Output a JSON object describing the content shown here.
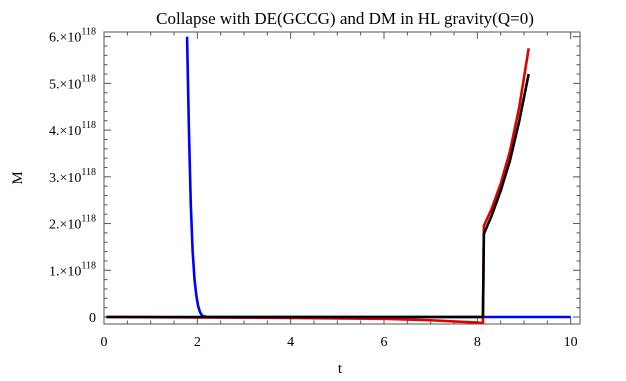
{
  "chart_data": {
    "type": "line",
    "title": "Collapse with DE(GCCG) and DM in HL gravity(Q=0)",
    "xlabel": "t",
    "ylabel": "M",
    "xlim": [
      0,
      10.2
    ],
    "ylim": [
      -1.5e+117,
      6.1e+118
    ],
    "grid": false,
    "legend": "none",
    "x_ticks": [
      {
        "value": 0,
        "label": "0"
      },
      {
        "value": 2,
        "label": "2"
      },
      {
        "value": 4,
        "label": "4"
      },
      {
        "value": 6,
        "label": "6"
      },
      {
        "value": 8,
        "label": "8"
      },
      {
        "value": 10,
        "label": "10"
      }
    ],
    "y_ticks": [
      {
        "value": 0,
        "base": "0",
        "exp": ""
      },
      {
        "value": 1e+118,
        "base": "1.×10",
        "exp": "118"
      },
      {
        "value": 2e+118,
        "base": "2.×10",
        "exp": "118"
      },
      {
        "value": 3e+118,
        "base": "3.×10",
        "exp": "118"
      },
      {
        "value": 4e+118,
        "base": "4.×10",
        "exp": "118"
      },
      {
        "value": 5e+118,
        "base": "5.×10",
        "exp": "118"
      },
      {
        "value": 6e+118,
        "base": "6.×10",
        "exp": "118"
      }
    ],
    "series": [
      {
        "color": "#0000ff",
        "points": [
          [
            1.78,
            6e+118
          ],
          [
            1.82,
            4e+118
          ],
          [
            1.86,
            2.4e+118
          ],
          [
            1.9,
            1.4e+118
          ],
          [
            1.94,
            8e+117
          ],
          [
            1.98,
            4.5e+117
          ],
          [
            2.02,
            2.2e+117
          ],
          [
            2.06,
            1e+117
          ],
          [
            2.1,
            3e+116
          ],
          [
            2.2,
            0.0
          ],
          [
            2.6,
            0.0
          ],
          [
            4.0,
            0.0
          ],
          [
            6.0,
            0.0
          ],
          [
            8.0,
            0.0
          ],
          [
            10.0,
            0.0
          ]
        ]
      },
      {
        "color": "#e00000",
        "points": [
          [
            0.05,
            0.0
          ],
          [
            2.0,
            -1e+116
          ],
          [
            4.0,
            -2e+116
          ],
          [
            6.0,
            -4e+116
          ],
          [
            7.0,
            -7e+116
          ],
          [
            7.6,
            -1e+117
          ],
          [
            8.0,
            -1.2e+117
          ],
          [
            8.12,
            -1.3e+117
          ],
          [
            8.14,
            1.95e+118
          ],
          [
            8.3,
            2.3e+118
          ],
          [
            8.5,
            2.85e+118
          ],
          [
            8.7,
            3.55e+118
          ],
          [
            8.9,
            4.5e+118
          ],
          [
            9.1,
            5.75e+118
          ]
        ]
      },
      {
        "color": "#000000",
        "points": [
          [
            0.05,
            0.0
          ],
          [
            2.0,
            0.0
          ],
          [
            4.0,
            0.0
          ],
          [
            6.0,
            0.0
          ],
          [
            8.0,
            0.0
          ],
          [
            8.12,
            0.0
          ],
          [
            8.14,
            1.78e+118
          ],
          [
            8.3,
            2.15e+118
          ],
          [
            8.5,
            2.7e+118
          ],
          [
            8.7,
            3.35e+118
          ],
          [
            8.9,
            4.2e+118
          ],
          [
            9.1,
            5.2e+118
          ]
        ]
      }
    ]
  }
}
